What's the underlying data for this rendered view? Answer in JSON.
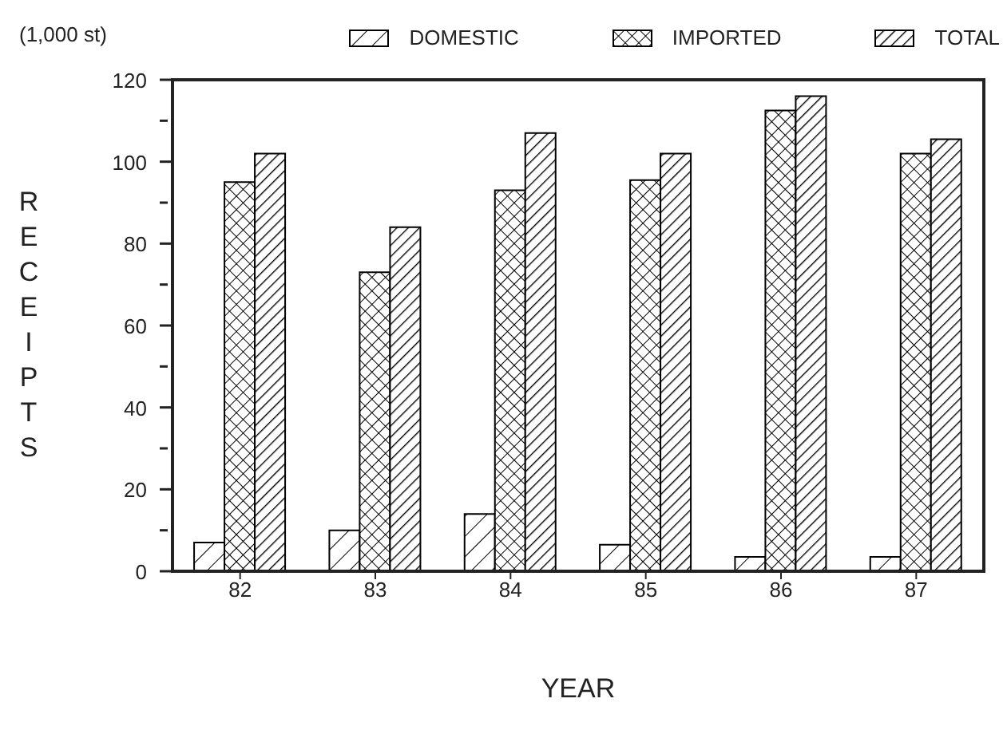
{
  "chart_data": {
    "type": "bar",
    "xlabel": "YEAR",
    "ylabel": "RECEIPTS",
    "annotations": [
      "(1,000 st)"
    ],
    "categories": [
      "82",
      "83",
      "84",
      "85",
      "86",
      "87"
    ],
    "series": [
      {
        "name": "DOMESTIC",
        "color": "#000000",
        "values": [
          7,
          10,
          14,
          6.5,
          3.5,
          3.5
        ]
      },
      {
        "name": "IMPORTED",
        "color": "#000000",
        "values": [
          95,
          73,
          93,
          95.5,
          112.5,
          102
        ]
      },
      {
        "name": "TOTAL",
        "color": "#000000",
        "values": [
          102,
          84,
          107,
          102,
          116,
          105.5
        ]
      }
    ],
    "ylim": [
      0,
      120
    ],
    "yticks": [
      0,
      {
        "value": 10,
        "label": null
      },
      20,
      {
        "value": 30,
        "label": null
      },
      40,
      {
        "value": 50,
        "label": null
      },
      60,
      {
        "value": 70,
        "label": null
      },
      80,
      {
        "value": 90,
        "label": null
      },
      100,
      {
        "value": 110,
        "label": null
      },
      120
    ],
    "grid": false,
    "legend": "top right"
  }
}
